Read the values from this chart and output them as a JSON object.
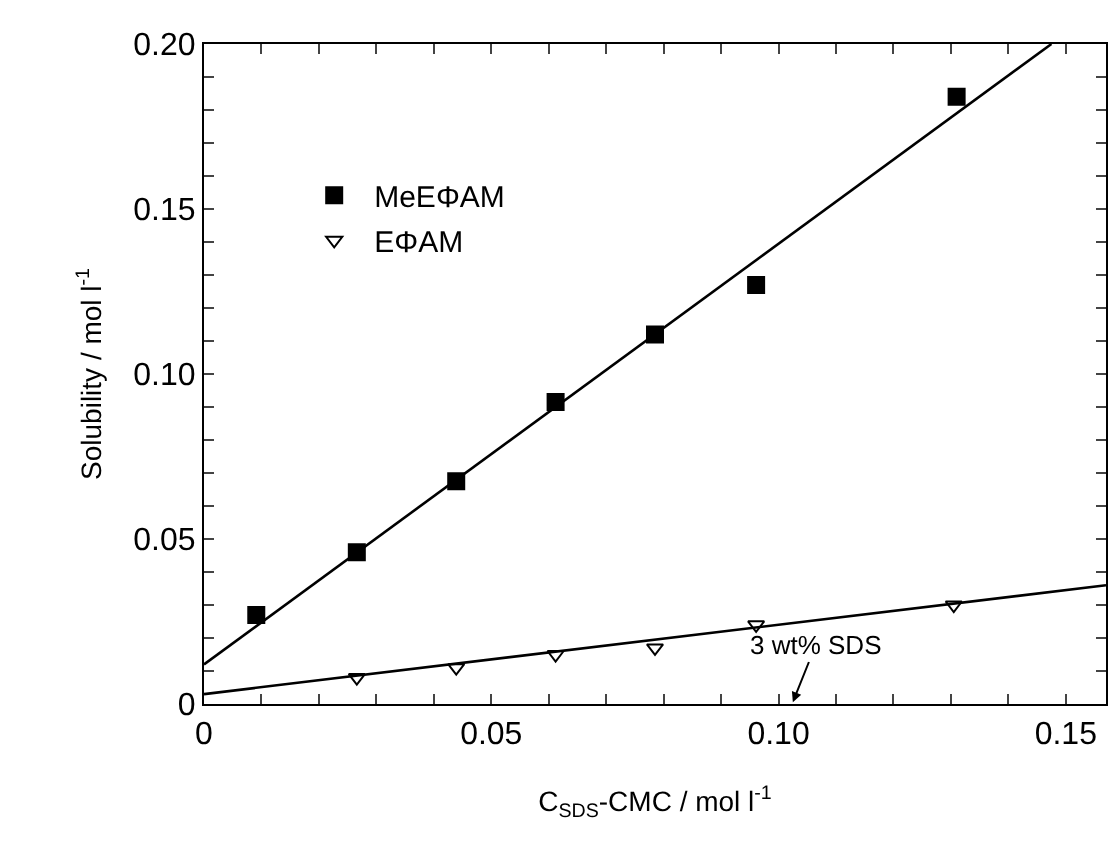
{
  "chart_data": {
    "type": "scatter",
    "xlabel": "C$_{SDS}$-CMC / mol l$^{-1}$",
    "ylabel": "Solubility / mol l$^{-1}$",
    "series": [
      {
        "name": "MeEΦAM",
        "color": "#000000",
        "marker": "square",
        "x": [
          0.0091,
          0.0266,
          0.0439,
          0.0612,
          0.0785,
          0.0961,
          0.131
        ],
        "values": [
          0.027,
          0.046,
          0.0675,
          0.0915,
          0.112,
          0.127,
          0.184
        ]
      },
      {
        "name": "EΦAM",
        "color": "#000000",
        "marker": "triangle",
        "x": [
          0.0266,
          0.0439,
          0.0612,
          0.0785,
          0.0961,
          0.1305
        ],
        "values": [
          0.008,
          0.011,
          0.015,
          0.017,
          0.024,
          0.03
        ]
      },
      {
        "type": "line",
        "color": "#000000",
        "marker": "none",
        "line_style": "solid",
        "x": [
          0,
          0.1475
        ],
        "values": [
          0.012,
          0.2
        ]
      },
      {
        "type": "line",
        "color": "#000000",
        "marker": "none",
        "line_style": "solid",
        "x": [
          0,
          0.157
        ],
        "values": [
          0.003,
          0.036
        ]
      }
    ],
    "annotations": [
      "3 wt% SDS"
    ],
    "xlim": [
      0,
      0.157
    ],
    "ylim": [
      0,
      0.2
    ],
    "xticks": [
      0,
      {
        "value": 0.01,
        "label": null
      },
      {
        "value": 0.02,
        "label": null
      },
      {
        "value": 0.03,
        "label": null
      },
      {
        "value": 0.04,
        "label": null
      },
      0.05,
      {
        "value": 0.06,
        "label": null
      },
      {
        "value": 0.07,
        "label": null
      },
      {
        "value": 0.08,
        "label": null
      },
      {
        "value": 0.09,
        "label": null
      },
      {
        "value": 0.1,
        "label": "0.10"
      },
      {
        "value": 0.11,
        "label": null
      },
      {
        "value": 0.12,
        "label": null
      },
      {
        "value": 0.13,
        "label": null
      },
      {
        "value": 0.14,
        "label": null
      },
      0.15
    ],
    "yticks": [
      0,
      {
        "value": 0.01,
        "label": null
      },
      {
        "value": 0.02,
        "label": null
      },
      {
        "value": 0.03,
        "label": null
      },
      {
        "value": 0.04,
        "label": null
      },
      0.05,
      {
        "value": 0.06,
        "label": null
      },
      {
        "value": 0.07,
        "label": null
      },
      {
        "value": 0.08,
        "label": null
      },
      {
        "value": 0.09,
        "label": null
      },
      {
        "value": 0.1,
        "label": "0.10"
      },
      {
        "value": 0.11,
        "label": null
      },
      {
        "value": 0.12,
        "label": null
      },
      {
        "value": 0.13,
        "label": null
      },
      {
        "value": 0.14,
        "label": null
      },
      0.15,
      {
        "value": 0.16,
        "label": null
      },
      {
        "value": 0.17,
        "label": null
      },
      {
        "value": 0.18,
        "label": null
      },
      {
        "value": 0.19,
        "label": null
      },
      {
        "value": 0.2,
        "label": "0.20"
      }
    ],
    "legend": "top left",
    "grid": false
  }
}
